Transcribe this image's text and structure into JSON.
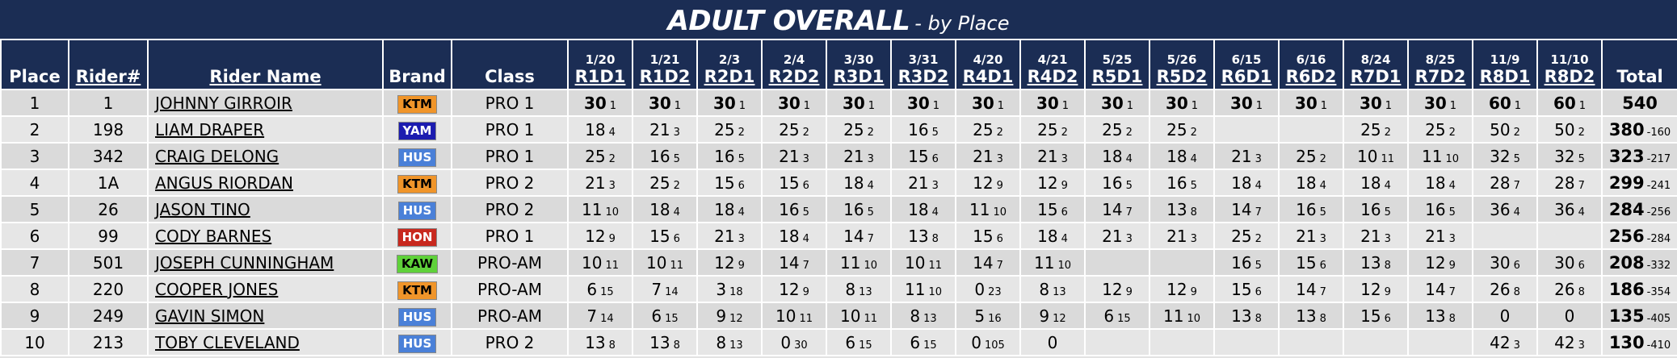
{
  "header": {
    "title": "ADULT OVERALL",
    "subtitle": "- by Place"
  },
  "table": {
    "columns": {
      "place": "Place",
      "rider_number": "Rider#",
      "rider_name": "Rider Name",
      "brand": "Brand",
      "class": "Class",
      "total": "Total"
    },
    "races": [
      {
        "date": "1/20",
        "code": "R1D1"
      },
      {
        "date": "1/21",
        "code": "R1D2"
      },
      {
        "date": "2/3",
        "code": "R2D1"
      },
      {
        "date": "2/4",
        "code": "R2D2"
      },
      {
        "date": "3/30",
        "code": "R3D1"
      },
      {
        "date": "3/31",
        "code": "R3D2"
      },
      {
        "date": "4/20",
        "code": "R4D1"
      },
      {
        "date": "4/21",
        "code": "R4D2"
      },
      {
        "date": "5/25",
        "code": "R5D1"
      },
      {
        "date": "5/26",
        "code": "R5D2"
      },
      {
        "date": "6/15",
        "code": "R6D1"
      },
      {
        "date": "6/16",
        "code": "R6D2"
      },
      {
        "date": "8/24",
        "code": "R7D1"
      },
      {
        "date": "8/25",
        "code": "R7D2"
      },
      {
        "date": "11/9",
        "code": "R8D1"
      },
      {
        "date": "11/10",
        "code": "R8D2"
      }
    ],
    "rows": [
      {
        "place": "1",
        "number": "1",
        "name": "JOHNNY GIRROIR",
        "brand": {
          "label": "KTM",
          "color": "#f0952a",
          "text_color": "#000000"
        },
        "class": "PRO 1",
        "results": [
          {
            "points": "30",
            "position": "1"
          },
          {
            "points": "30",
            "position": "1"
          },
          {
            "points": "30",
            "position": "1"
          },
          {
            "points": "30",
            "position": "1"
          },
          {
            "points": "30",
            "position": "1"
          },
          {
            "points": "30",
            "position": "1"
          },
          {
            "points": "30",
            "position": "1"
          },
          {
            "points": "30",
            "position": "1"
          },
          {
            "points": "30",
            "position": "1"
          },
          {
            "points": "30",
            "position": "1"
          },
          {
            "points": "30",
            "position": "1"
          },
          {
            "points": "30",
            "position": "1"
          },
          {
            "points": "30",
            "position": "1"
          },
          {
            "points": "30",
            "position": "1"
          },
          {
            "points": "60",
            "position": "1"
          },
          {
            "points": "60",
            "position": "1"
          }
        ],
        "total": {
          "points": "540"
        }
      },
      {
        "place": "2",
        "number": "198",
        "name": "LIAM DRAPER",
        "brand": {
          "label": "YAM",
          "color": "#1c1cb0",
          "text_color": "#ffffff"
        },
        "class": "PRO 1",
        "results": [
          {
            "points": "18",
            "position": "4"
          },
          {
            "points": "21",
            "position": "3"
          },
          {
            "points": "25",
            "position": "2"
          },
          {
            "points": "25",
            "position": "2"
          },
          {
            "points": "25",
            "position": "2"
          },
          {
            "points": "16",
            "position": "5"
          },
          {
            "points": "25",
            "position": "2"
          },
          {
            "points": "25",
            "position": "2"
          },
          {
            "points": "25",
            "position": "2"
          },
          {
            "points": "25",
            "position": "2"
          },
          null,
          null,
          {
            "points": "25",
            "position": "2"
          },
          {
            "points": "25",
            "position": "2"
          },
          {
            "points": "50",
            "position": "2"
          },
          {
            "points": "50",
            "position": "2"
          }
        ],
        "total": {
          "points": "380",
          "behind": "-160"
        }
      },
      {
        "place": "3",
        "number": "342",
        "name": "CRAIG DELONG",
        "brand": {
          "label": "HUS",
          "color": "#4a80d8",
          "text_color": "#ffffff"
        },
        "class": "PRO 1",
        "results": [
          {
            "points": "25",
            "position": "2"
          },
          {
            "points": "16",
            "position": "5"
          },
          {
            "points": "16",
            "position": "5"
          },
          {
            "points": "21",
            "position": "3"
          },
          {
            "points": "21",
            "position": "3"
          },
          {
            "points": "15",
            "position": "6"
          },
          {
            "points": "21",
            "position": "3"
          },
          {
            "points": "21",
            "position": "3"
          },
          {
            "points": "18",
            "position": "4"
          },
          {
            "points": "18",
            "position": "4"
          },
          {
            "points": "21",
            "position": "3"
          },
          {
            "points": "25",
            "position": "2"
          },
          {
            "points": "10",
            "position": "11"
          },
          {
            "points": "11",
            "position": "10"
          },
          {
            "points": "32",
            "position": "5"
          },
          {
            "points": "32",
            "position": "5"
          }
        ],
        "total": {
          "points": "323",
          "behind": "-217"
        }
      },
      {
        "place": "4",
        "number": "1A",
        "name": "ANGUS RIORDAN",
        "brand": {
          "label": "KTM",
          "color": "#f0952a",
          "text_color": "#000000"
        },
        "class": "PRO 2",
        "results": [
          {
            "points": "21",
            "position": "3"
          },
          {
            "points": "25",
            "position": "2"
          },
          {
            "points": "15",
            "position": "6"
          },
          {
            "points": "15",
            "position": "6"
          },
          {
            "points": "18",
            "position": "4"
          },
          {
            "points": "21",
            "position": "3"
          },
          {
            "points": "12",
            "position": "9"
          },
          {
            "points": "12",
            "position": "9"
          },
          {
            "points": "16",
            "position": "5"
          },
          {
            "points": "16",
            "position": "5"
          },
          {
            "points": "18",
            "position": "4"
          },
          {
            "points": "18",
            "position": "4"
          },
          {
            "points": "18",
            "position": "4"
          },
          {
            "points": "18",
            "position": "4"
          },
          {
            "points": "28",
            "position": "7"
          },
          {
            "points": "28",
            "position": "7"
          }
        ],
        "total": {
          "points": "299",
          "behind": "-241"
        }
      },
      {
        "place": "5",
        "number": "26",
        "name": "JASON TINO",
        "brand": {
          "label": "HUS",
          "color": "#4a80d8",
          "text_color": "#ffffff"
        },
        "class": "PRO 2",
        "results": [
          {
            "points": "11",
            "position": "10"
          },
          {
            "points": "18",
            "position": "4"
          },
          {
            "points": "18",
            "position": "4"
          },
          {
            "points": "16",
            "position": "5"
          },
          {
            "points": "16",
            "position": "5"
          },
          {
            "points": "18",
            "position": "4"
          },
          {
            "points": "11",
            "position": "10"
          },
          {
            "points": "15",
            "position": "6"
          },
          {
            "points": "14",
            "position": "7"
          },
          {
            "points": "13",
            "position": "8"
          },
          {
            "points": "14",
            "position": "7"
          },
          {
            "points": "16",
            "position": "5"
          },
          {
            "points": "16",
            "position": "5"
          },
          {
            "points": "16",
            "position": "5"
          },
          {
            "points": "36",
            "position": "4"
          },
          {
            "points": "36",
            "position": "4"
          }
        ],
        "total": {
          "points": "284",
          "behind": "-256"
        }
      },
      {
        "place": "6",
        "number": "99",
        "name": "CODY BARNES",
        "brand": {
          "label": "HON",
          "color": "#c8281e",
          "text_color": "#ffffff"
        },
        "class": "PRO 1",
        "results": [
          {
            "points": "12",
            "position": "9"
          },
          {
            "points": "15",
            "position": "6"
          },
          {
            "points": "21",
            "position": "3"
          },
          {
            "points": "18",
            "position": "4"
          },
          {
            "points": "14",
            "position": "7"
          },
          {
            "points": "13",
            "position": "8"
          },
          {
            "points": "15",
            "position": "6"
          },
          {
            "points": "18",
            "position": "4"
          },
          {
            "points": "21",
            "position": "3"
          },
          {
            "points": "21",
            "position": "3"
          },
          {
            "points": "25",
            "position": "2"
          },
          {
            "points": "21",
            "position": "3"
          },
          {
            "points": "21",
            "position": "3"
          },
          {
            "points": "21",
            "position": "3"
          },
          null,
          null
        ],
        "total": {
          "points": "256",
          "behind": "-284"
        }
      },
      {
        "place": "7",
        "number": "501",
        "name": "JOSEPH CUNNINGHAM",
        "brand": {
          "label": "KAW",
          "color": "#5fd13a",
          "text_color": "#000000"
        },
        "class": "PRO-AM",
        "results": [
          {
            "points": "10",
            "position": "11"
          },
          {
            "points": "10",
            "position": "11"
          },
          {
            "points": "12",
            "position": "9"
          },
          {
            "points": "14",
            "position": "7"
          },
          {
            "points": "11",
            "position": "10"
          },
          {
            "points": "10",
            "position": "11"
          },
          {
            "points": "14",
            "position": "7"
          },
          {
            "points": "11",
            "position": "10"
          },
          null,
          null,
          {
            "points": "16",
            "position": "5"
          },
          {
            "points": "15",
            "position": "6"
          },
          {
            "points": "13",
            "position": "8"
          },
          {
            "points": "12",
            "position": "9"
          },
          {
            "points": "30",
            "position": "6"
          },
          {
            "points": "30",
            "position": "6"
          }
        ],
        "total": {
          "points": "208",
          "behind": "-332"
        }
      },
      {
        "place": "8",
        "number": "220",
        "name": "COOPER JONES",
        "brand": {
          "label": "KTM",
          "color": "#f0952a",
          "text_color": "#000000"
        },
        "class": "PRO-AM",
        "results": [
          {
            "points": "6",
            "position": "15"
          },
          {
            "points": "7",
            "position": "14"
          },
          {
            "points": "3",
            "position": "18"
          },
          {
            "points": "12",
            "position": "9"
          },
          {
            "points": "8",
            "position": "13"
          },
          {
            "points": "11",
            "position": "10"
          },
          {
            "points": "0",
            "position": "23"
          },
          {
            "points": "8",
            "position": "13"
          },
          {
            "points": "12",
            "position": "9"
          },
          {
            "points": "12",
            "position": "9"
          },
          {
            "points": "15",
            "position": "6"
          },
          {
            "points": "14",
            "position": "7"
          },
          {
            "points": "12",
            "position": "9"
          },
          {
            "points": "14",
            "position": "7"
          },
          {
            "points": "26",
            "position": "8"
          },
          {
            "points": "26",
            "position": "8"
          }
        ],
        "total": {
          "points": "186",
          "behind": "-354"
        }
      },
      {
        "place": "9",
        "number": "249",
        "name": "GAVIN SIMON",
        "brand": {
          "label": "HUS",
          "color": "#4a80d8",
          "text_color": "#ffffff"
        },
        "class": "PRO-AM",
        "results": [
          {
            "points": "7",
            "position": "14"
          },
          {
            "points": "6",
            "position": "15"
          },
          {
            "points": "9",
            "position": "12"
          },
          {
            "points": "10",
            "position": "11"
          },
          {
            "points": "10",
            "position": "11"
          },
          {
            "points": "8",
            "position": "13"
          },
          {
            "points": "5",
            "position": "16"
          },
          {
            "points": "9",
            "position": "12"
          },
          {
            "points": "6",
            "position": "15"
          },
          {
            "points": "11",
            "position": "10"
          },
          {
            "points": "13",
            "position": "8"
          },
          {
            "points": "13",
            "position": "8"
          },
          {
            "points": "15",
            "position": "6"
          },
          {
            "points": "13",
            "position": "8"
          },
          {
            "points": "0"
          },
          {
            "points": "0"
          }
        ],
        "total": {
          "points": "135",
          "behind": "-405"
        }
      },
      {
        "place": "10",
        "number": "213",
        "name": "TOBY CLEVELAND",
        "brand": {
          "label": "HUS",
          "color": "#4a80d8",
          "text_color": "#ffffff"
        },
        "class": "PRO 2",
        "results": [
          {
            "points": "13",
            "position": "8"
          },
          {
            "points": "13",
            "position": "8"
          },
          {
            "points": "8",
            "position": "13"
          },
          {
            "points": "0",
            "position": "30"
          },
          {
            "points": "6",
            "position": "15"
          },
          {
            "points": "6",
            "position": "15"
          },
          {
            "points": "0",
            "position": "105"
          },
          {
            "points": "0"
          },
          null,
          null,
          null,
          null,
          null,
          null,
          {
            "points": "42",
            "position": "3"
          },
          {
            "points": "42",
            "position": "3"
          }
        ],
        "total": {
          "points": "130",
          "behind": "-410"
        }
      }
    ]
  }
}
